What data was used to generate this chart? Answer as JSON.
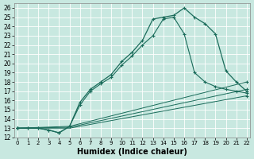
{
  "xlabel": "Humidex (Indice chaleur)",
  "bg_color": "#c8e8e0",
  "grid_color": "#b0d0c8",
  "line_color": "#1a6b5a",
  "xlim": [
    -0.3,
    22.3
  ],
  "ylim": [
    12,
    26.5
  ],
  "xticks": [
    0,
    1,
    2,
    3,
    4,
    5,
    6,
    7,
    8,
    9,
    10,
    11,
    12,
    13,
    14,
    15,
    16,
    17,
    18,
    19,
    20,
    21,
    22
  ],
  "yticks": [
    12,
    13,
    14,
    15,
    16,
    17,
    18,
    19,
    20,
    21,
    22,
    23,
    24,
    25,
    26
  ],
  "main_curve_x": [
    0,
    1,
    2,
    3,
    4,
    5,
    6,
    7,
    8,
    9,
    10,
    11,
    12,
    13,
    14,
    15,
    16,
    17,
    18,
    19,
    20,
    21,
    22
  ],
  "main_curve_y": [
    13,
    13,
    13,
    12.8,
    12.5,
    13.2,
    15.8,
    17.2,
    18.0,
    18.8,
    20.2,
    21.2,
    22.5,
    24.8,
    25.0,
    25.2,
    26.0,
    25.0,
    24.3,
    23.2,
    19.2,
    18.0,
    17.0
  ],
  "curve2_x": [
    0,
    1,
    2,
    3,
    4,
    5,
    6,
    7,
    8,
    9,
    10,
    11,
    12,
    13,
    14,
    15,
    16,
    17,
    18,
    19,
    20,
    21,
    22
  ],
  "curve2_y": [
    13,
    13,
    13,
    12.8,
    12.5,
    13.2,
    15.5,
    17.0,
    17.8,
    18.5,
    19.8,
    20.8,
    22.0,
    23.0,
    24.8,
    25.0,
    23.2,
    19.0,
    18.0,
    17.5,
    17.2,
    17.0,
    16.8
  ],
  "line1_x": [
    0,
    5,
    22
  ],
  "line1_y": [
    13,
    13.2,
    18.0
  ],
  "line2_x": [
    0,
    5,
    22
  ],
  "line2_y": [
    13,
    13.1,
    17.2
  ],
  "line3_x": [
    0,
    5,
    22
  ],
  "line3_y": [
    13,
    13.0,
    16.5
  ]
}
